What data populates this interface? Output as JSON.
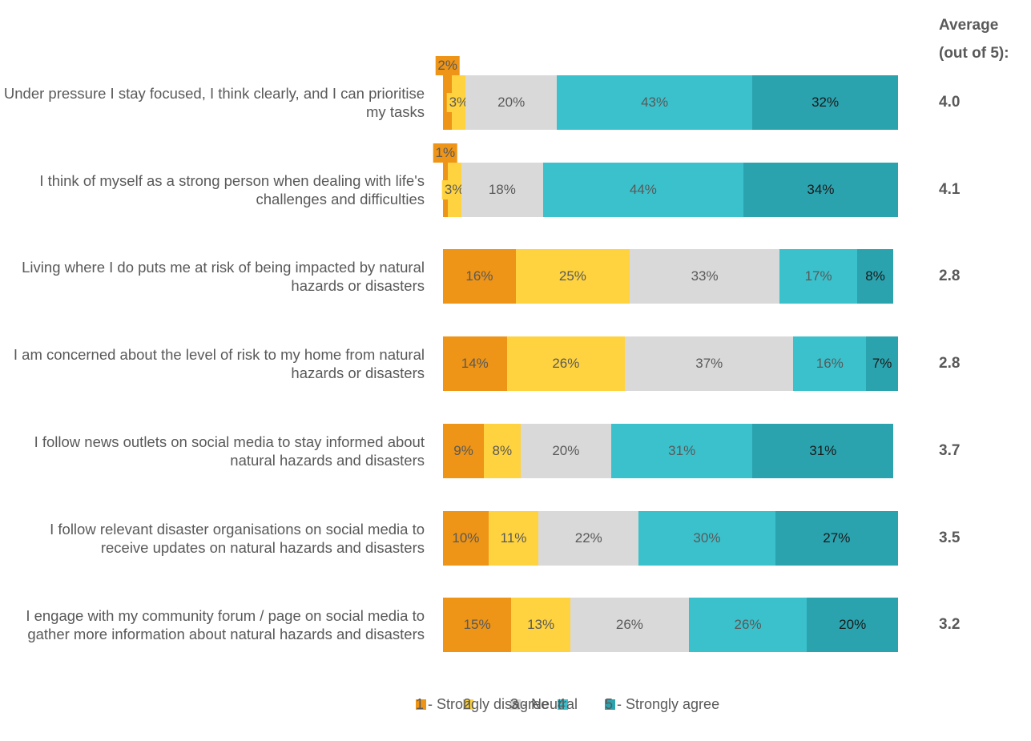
{
  "chart_data": {
    "type": "stacked-bar-horizontal",
    "categories": [
      "Under pressure I stay focused, I think clearly, and I can prioritise my tasks",
      "I think of myself as a strong person when dealing with life's challenges and difficulties",
      "Living where I do puts me at risk of being impacted by natural hazards or disasters",
      "I am concerned about the level of risk to my home from natural hazards or disasters",
      "I follow news outlets on social media to stay informed about natural hazards and disasters",
      "I follow relevant disaster organisations on social media to receive updates on natural hazards and disasters",
      "I engage with my community forum / page on social media to gather more information about natural hazards and disasters"
    ],
    "xlim": [
      0,
      100
    ],
    "series": [
      {
        "name": "1 - Strongly disagree",
        "color": "#ee9416",
        "values": [
          2,
          1,
          16,
          14,
          9,
          10,
          15
        ],
        "value_labels": [
          "2%",
          "1%",
          "16%",
          "14%",
          "9%",
          "10%",
          "15%"
        ]
      },
      {
        "name": "2",
        "color": "#ffd33f",
        "values": [
          3,
          3,
          25,
          26,
          8,
          11,
          13
        ],
        "value_labels": [
          "3%",
          "3%",
          "25%",
          "26%",
          "8%",
          "11%",
          "13%"
        ]
      },
      {
        "name": "3 - Neutral",
        "color": "#d9d9d9",
        "values": [
          20,
          18,
          33,
          37,
          20,
          22,
          26
        ],
        "value_labels": [
          "20%",
          "18%",
          "33%",
          "37%",
          "20%",
          "22%",
          "26%"
        ]
      },
      {
        "name": "4",
        "color": "#3bc1cc",
        "values": [
          43,
          44,
          17,
          16,
          31,
          30,
          26
        ],
        "value_labels": [
          "43%",
          "44%",
          "17%",
          "16%",
          "31%",
          "30%",
          "26%"
        ]
      },
      {
        "name": "5 - Strongly agree",
        "color": "#2ba3af",
        "values": [
          32,
          34,
          8,
          7,
          31,
          27,
          20
        ],
        "value_labels": [
          "32%",
          "34%",
          "8%",
          "7%",
          "31%",
          "27%",
          "20%"
        ]
      }
    ],
    "average_header": [
      "Average",
      "(out of 5):"
    ],
    "averages": [
      "4.0",
      "4.1",
      "2.8",
      "2.8",
      "3.7",
      "3.5",
      "3.2"
    ]
  }
}
